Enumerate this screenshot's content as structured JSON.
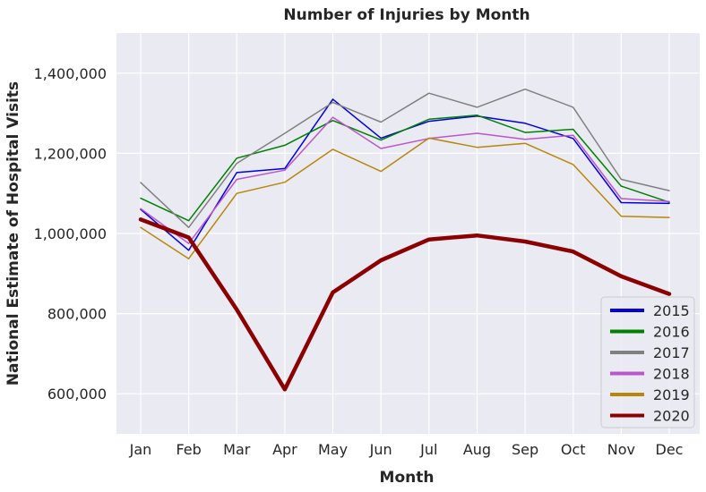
{
  "chart_data": {
    "type": "line",
    "title": "Number of Injuries by Month",
    "xlabel": "Month",
    "ylabel": "National Estimate of Hospital Visits",
    "categories": [
      "Jan",
      "Feb",
      "Mar",
      "Apr",
      "May",
      "Jun",
      "Jul",
      "Aug",
      "Sep",
      "Oct",
      "Nov",
      "Dec"
    ],
    "ylim": [
      500000,
      1500000
    ],
    "yticks": [
      600000,
      800000,
      1000000,
      1200000,
      1400000
    ],
    "ytick_labels": [
      "600,000",
      "800,000",
      "1,000,000",
      "1,200,000",
      "1,400,000"
    ],
    "grid": true,
    "legend_position": "bottom-right",
    "series": [
      {
        "name": "2015",
        "color": "#0000e0",
        "values": [
          1060000,
          958000,
          1152000,
          1162000,
          1335000,
          1238000,
          1280000,
          1293000,
          1275000,
          1237000,
          1077000,
          1075000
        ]
      },
      {
        "name": "2016",
        "color": "#008000",
        "values": [
          1088000,
          1032000,
          1188000,
          1220000,
          1282000,
          1233000,
          1285000,
          1295000,
          1252000,
          1260000,
          1118000,
          1078000
        ]
      },
      {
        "name": "2017",
        "color": "#808080",
        "values": [
          1127000,
          1015000,
          1175000,
          1250000,
          1327000,
          1278000,
          1350000,
          1315000,
          1360000,
          1315000,
          1135000,
          1107000
        ]
      },
      {
        "name": "2018",
        "color": "#bb55cc",
        "values": [
          1062000,
          975000,
          1135000,
          1158000,
          1290000,
          1212000,
          1237000,
          1250000,
          1235000,
          1245000,
          1087000,
          1080000
        ]
      },
      {
        "name": "2019",
        "color": "#b8860b",
        "values": [
          1015000,
          937000,
          1100000,
          1128000,
          1210000,
          1155000,
          1238000,
          1215000,
          1225000,
          1172000,
          1043000,
          1040000
        ]
      },
      {
        "name": "2020",
        "color": "#8b0000",
        "values": [
          1035000,
          990000,
          810000,
          611000,
          853000,
          933000,
          985000,
          995000,
          980000,
          955000,
          893000,
          849000
        ]
      }
    ]
  }
}
